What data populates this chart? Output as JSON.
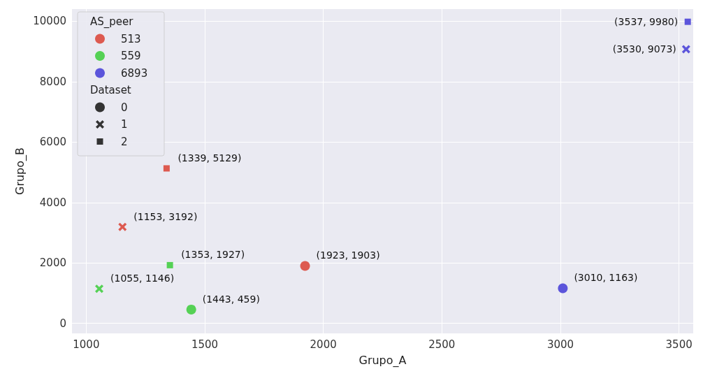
{
  "chart_data": {
    "type": "scatter",
    "xlabel": "Grupo_A",
    "ylabel": "Grupo_B",
    "legend_title": [
      "AS_peer",
      "Dataset"
    ],
    "xlim": [
      940,
      3560
    ],
    "xticks": [
      1000,
      1500,
      2000,
      2500,
      3000,
      3500
    ],
    "ylim": [
      -330,
      10400
    ],
    "yticks": [
      0,
      2000,
      4000,
      6000,
      8000,
      10000
    ],
    "grid": true,
    "legend": "top left",
    "series": [
      {
        "name": "513",
        "color": "#dd5a50",
        "x": [
          1923,
          1153,
          1339
        ],
        "values": [
          1903,
          3192,
          5129
        ],
        "marker": [
          "circle",
          "cross",
          "square"
        ]
      },
      {
        "name": "559",
        "color": "#55d155",
        "x": [
          1443,
          1055,
          1353
        ],
        "values": [
          459,
          1146,
          1927
        ],
        "marker": [
          "circle",
          "cross",
          "square"
        ]
      },
      {
        "name": "6893",
        "color": "#5c55db",
        "x": [
          3010,
          3530,
          3537
        ],
        "values": [
          1163,
          9073,
          9980
        ],
        "marker": [
          "circle",
          "cross",
          "square"
        ]
      },
      {
        "name": "0",
        "color": "#333333",
        "marker": "circle"
      },
      {
        "name": "1",
        "color": "#333333",
        "marker": "cross"
      },
      {
        "name": "2",
        "color": "#333333",
        "marker": "square"
      }
    ],
    "annotations": [
      {
        "text": "(1923, 1903)",
        "x": 1923,
        "y": 1903
      },
      {
        "text": "(1153, 3192)",
        "x": 1153,
        "y": 3192
      },
      {
        "text": "(1339, 5129)",
        "x": 1339,
        "y": 5129
      },
      {
        "text": "(1443, 459)",
        "x": 1443,
        "y": 459
      },
      {
        "text": "(1055, 1146)",
        "x": 1055,
        "y": 1146
      },
      {
        "text": "(1353, 1927)",
        "x": 1353,
        "y": 1927
      },
      {
        "text": "(3010, 1163)",
        "x": 3010,
        "y": 1163
      },
      {
        "text": "(3530, 9073)",
        "x": 3530,
        "y": 9073
      },
      {
        "text": "(3537, 9980)",
        "x": 3537,
        "y": 9980
      }
    ]
  }
}
